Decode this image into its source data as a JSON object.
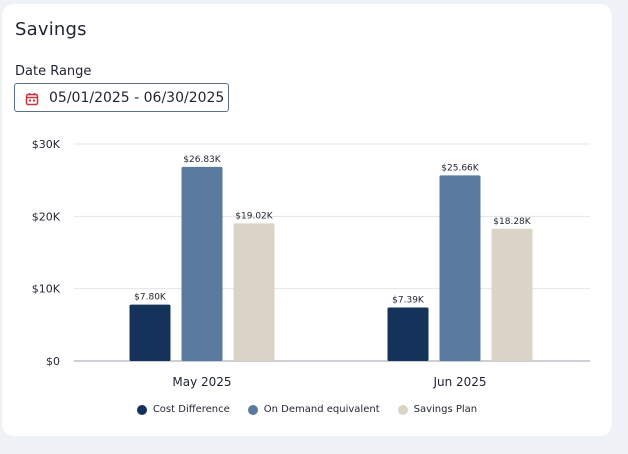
{
  "header": {
    "title": "Savings"
  },
  "date_range": {
    "label": "Date Range",
    "value": "05/01/2025 - 06/30/2025",
    "icon": "calendar-icon",
    "icon_color": "#d0343a"
  },
  "colors": {
    "cost_difference": "#14325a",
    "on_demand": "#5b7aa0",
    "savings_plan": "#dbd3c6",
    "grid": "#e3e6ea",
    "axis": "#9aa1ab"
  },
  "chart_data": {
    "type": "bar",
    "title": "",
    "xlabel": "",
    "ylabel": "",
    "categories": [
      "May 2025",
      "Jun 2025"
    ],
    "ylim": [
      0,
      30000
    ],
    "yticks": [
      0,
      10000,
      20000,
      30000
    ],
    "ytick_labels": [
      "$0",
      "$10K",
      "$20K",
      "$30K"
    ],
    "series": [
      {
        "name": "Cost Difference",
        "values": [
          7800,
          7390
        ],
        "labels": [
          "$7.80K",
          "$7.39K"
        ]
      },
      {
        "name": "On Demand equivalent",
        "values": [
          26830,
          25660
        ],
        "labels": [
          "$26.83K",
          "$25.66K"
        ]
      },
      {
        "name": "Savings Plan",
        "values": [
          19020,
          18280
        ],
        "labels": [
          "$19.02K",
          "$18.28K"
        ]
      }
    ],
    "legend_position": "bottom"
  }
}
